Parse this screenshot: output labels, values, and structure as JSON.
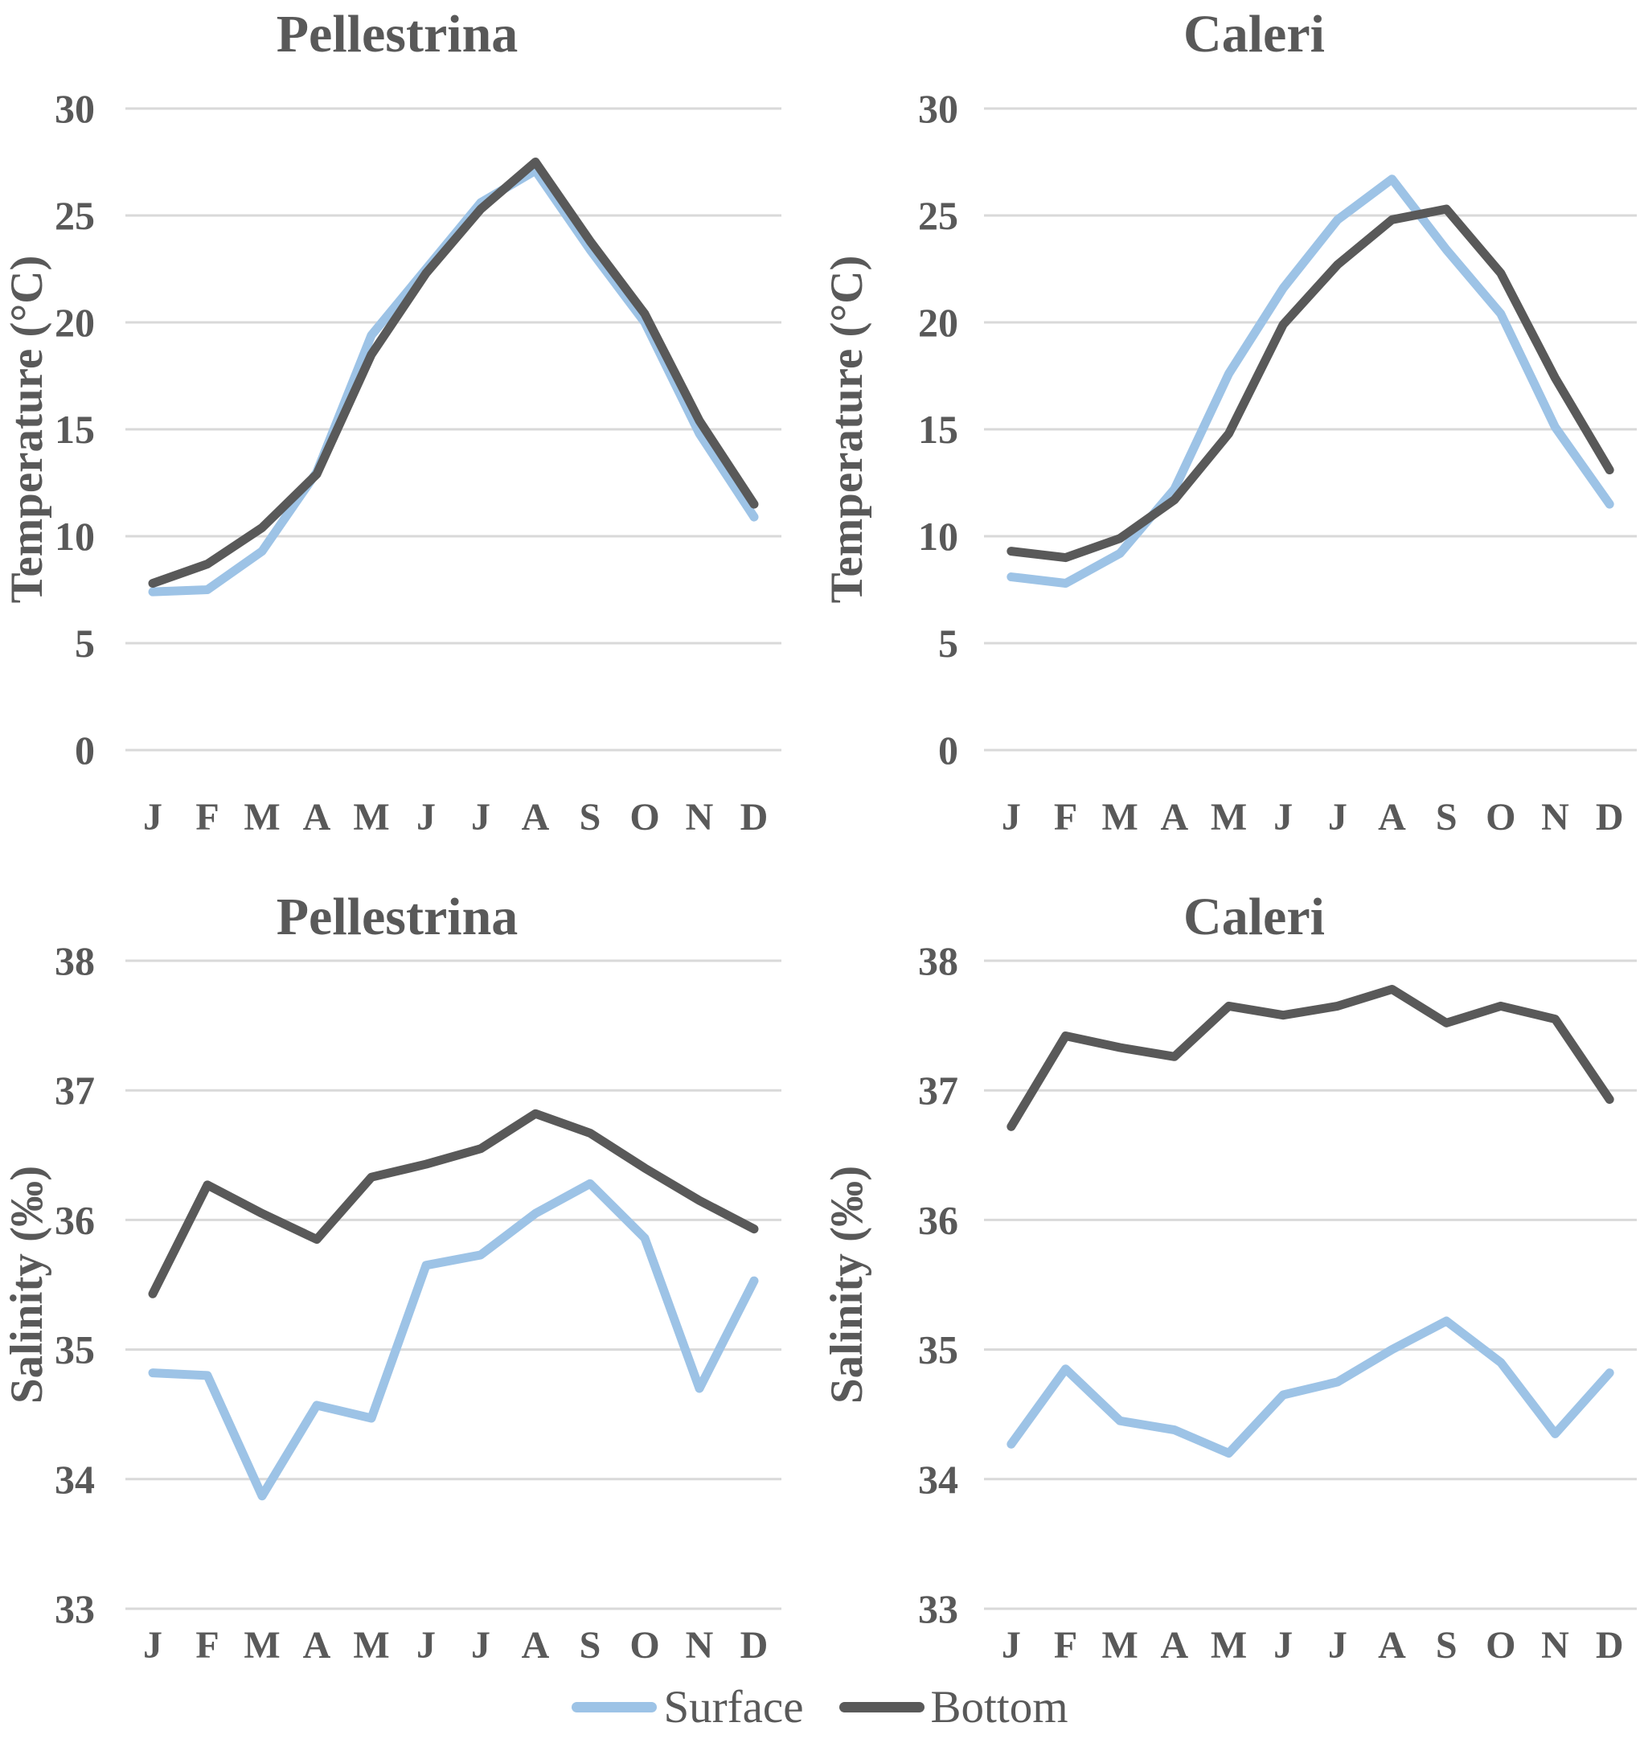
{
  "figure": {
    "background": "#FFFFFF"
  },
  "style": {
    "text_color": "#595959",
    "gridline_color": "#D9D9D9",
    "surface_color": "#9DC3E6",
    "bottom_color": "#595959",
    "line_width": 11,
    "gridline_width": 3
  },
  "legend": {
    "position": "bottom-center",
    "items": [
      {
        "label": "Surface",
        "color": "#9DC3E6"
      },
      {
        "label": "Bottom",
        "color": "#595959"
      }
    ]
  },
  "chart_data": [
    {
      "id": "temperature-pellestrina",
      "type": "line",
      "title": "Pellestrina",
      "ylabel": "Temperature (°C)",
      "xlabel": "",
      "ylim": [
        0,
        30
      ],
      "yticks": [
        0,
        5,
        10,
        15,
        20,
        25,
        30
      ],
      "grid": "horizontal",
      "categories": [
        "J",
        "F",
        "M",
        "A",
        "M",
        "J",
        "J",
        "A",
        "S",
        "O",
        "N",
        "D"
      ],
      "series": [
        {
          "name": "Surface",
          "color": "#9DC3E6",
          "values": [
            7.4,
            7.5,
            9.3,
            13.0,
            19.4,
            22.5,
            25.6,
            27.1,
            23.4,
            20.0,
            14.8,
            10.9
          ]
        },
        {
          "name": "Bottom",
          "color": "#595959",
          "values": [
            7.8,
            8.7,
            10.4,
            12.9,
            18.5,
            22.3,
            25.3,
            27.5,
            23.8,
            20.4,
            15.4,
            11.5
          ]
        }
      ]
    },
    {
      "id": "temperature-caleri",
      "type": "line",
      "title": "Caleri",
      "ylabel": "Temperature (°C)",
      "xlabel": "",
      "ylim": [
        0,
        30
      ],
      "yticks": [
        0,
        5,
        10,
        15,
        20,
        25,
        30
      ],
      "grid": "horizontal",
      "categories": [
        "J",
        "F",
        "M",
        "A",
        "M",
        "J",
        "J",
        "A",
        "S",
        "O",
        "N",
        "D"
      ],
      "series": [
        {
          "name": "Surface",
          "color": "#9DC3E6",
          "values": [
            8.1,
            7.8,
            9.2,
            12.2,
            17.6,
            21.6,
            24.8,
            26.7,
            23.4,
            20.4,
            15.1,
            11.5
          ]
        },
        {
          "name": "Bottom",
          "color": "#595959",
          "values": [
            9.3,
            9.0,
            9.9,
            11.7,
            14.8,
            19.9,
            22.7,
            24.8,
            25.3,
            22.3,
            17.4,
            13.1
          ]
        }
      ]
    },
    {
      "id": "salinity-pellestrina",
      "type": "line",
      "title": "Pellestrina",
      "ylabel": "Salinity (‰)",
      "xlabel": "",
      "ylim": [
        33,
        38
      ],
      "yticks": [
        33,
        34,
        35,
        36,
        37,
        38
      ],
      "grid": "horizontal",
      "categories": [
        "J",
        "F",
        "M",
        "A",
        "M",
        "J",
        "J",
        "A",
        "S",
        "O",
        "N",
        "D"
      ],
      "series": [
        {
          "name": "Surface",
          "color": "#9DC3E6",
          "values": [
            34.82,
            34.8,
            33.87,
            34.57,
            34.47,
            35.65,
            35.73,
            36.05,
            36.28,
            35.86,
            34.7,
            35.53
          ]
        },
        {
          "name": "Bottom",
          "color": "#595959",
          "values": [
            35.43,
            36.27,
            36.05,
            35.85,
            36.33,
            36.43,
            36.55,
            36.82,
            36.67,
            36.4,
            36.15,
            35.93
          ]
        }
      ]
    },
    {
      "id": "salinity-caleri",
      "type": "line",
      "title": "Caleri",
      "ylabel": "Salinity (‰)",
      "xlabel": "",
      "ylim": [
        33,
        38
      ],
      "yticks": [
        33,
        34,
        35,
        36,
        37,
        38
      ],
      "grid": "horizontal",
      "categories": [
        "J",
        "F",
        "M",
        "A",
        "M",
        "J",
        "J",
        "A",
        "S",
        "O",
        "N",
        "D"
      ],
      "series": [
        {
          "name": "Surface",
          "color": "#9DC3E6",
          "values": [
            34.27,
            34.85,
            34.45,
            34.38,
            34.2,
            34.65,
            34.75,
            35.0,
            35.22,
            34.9,
            34.35,
            34.82
          ]
        },
        {
          "name": "Bottom",
          "color": "#595959",
          "values": [
            36.72,
            37.42,
            37.33,
            37.26,
            37.65,
            37.58,
            37.65,
            37.78,
            37.52,
            37.65,
            37.55,
            36.93
          ]
        }
      ]
    }
  ]
}
